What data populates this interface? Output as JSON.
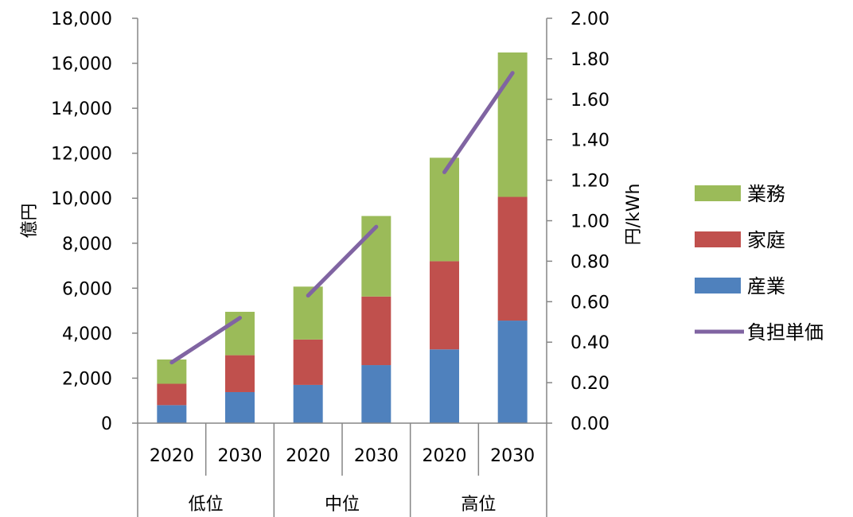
{
  "chart_data": {
    "type": "bar",
    "stacked": true,
    "categories": [
      "2020",
      "2030",
      "2020",
      "2030",
      "2020",
      "2030"
    ],
    "groups": [
      {
        "label": "低位",
        "categories": [
          "2020",
          "2030"
        ]
      },
      {
        "label": "中位",
        "categories": [
          "2020",
          "2030"
        ]
      },
      {
        "label": "高位",
        "categories": [
          "2020",
          "2030"
        ]
      }
    ],
    "series": [
      {
        "name": "産業",
        "type": "bar",
        "color": "#4F81BD",
        "values": [
          800,
          1380,
          1700,
          2580,
          3280,
          4560
        ]
      },
      {
        "name": "家庭",
        "type": "bar",
        "color": "#C0504D",
        "values": [
          950,
          1640,
          2020,
          3050,
          3920,
          5500
        ]
      },
      {
        "name": "業務",
        "type": "bar",
        "color": "#9BBB59",
        "values": [
          1080,
          1930,
          2350,
          3580,
          4600,
          6420
        ]
      },
      {
        "name": "負担単価",
        "type": "line",
        "axis": "right",
        "color": "#8064A2",
        "values": [
          0.3,
          0.52,
          0.63,
          0.97,
          1.24,
          1.73
        ]
      }
    ],
    "ylabel": "億円",
    "ylim": [
      0,
      18000
    ],
    "yticks": [
      0,
      2000,
      4000,
      6000,
      8000,
      10000,
      12000,
      14000,
      16000,
      18000
    ],
    "ytick_labels": [
      "0",
      "2,000",
      "4,000",
      "6,000",
      "8,000",
      "10,000",
      "12,000",
      "14,000",
      "16,000",
      "18,000"
    ],
    "y2label": "円/kWh",
    "y2lim": [
      0,
      2.0
    ],
    "y2ticks": [
      0,
      0.2,
      0.4,
      0.6,
      0.8,
      1.0,
      1.2,
      1.4,
      1.6,
      1.8,
      2.0
    ],
    "y2tick_labels": [
      "0.00",
      "0.20",
      "0.40",
      "0.60",
      "0.80",
      "1.00",
      "1.20",
      "1.40",
      "1.60",
      "1.80",
      "2.00"
    ],
    "legend": {
      "placement": "right",
      "order": [
        "業務",
        "家庭",
        "産業",
        "負担単価"
      ]
    },
    "grid": false
  }
}
